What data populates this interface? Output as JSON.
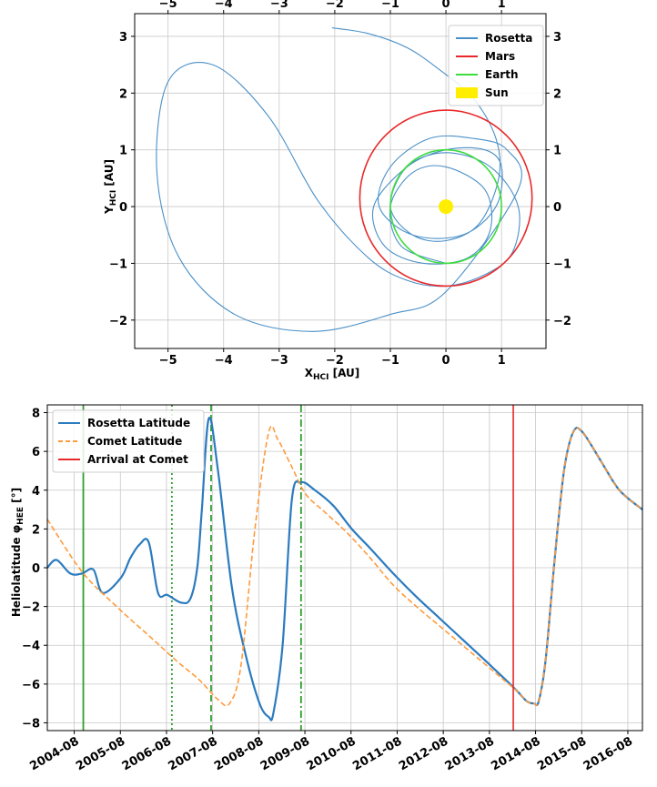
{
  "chart_data": [
    {
      "type": "line",
      "xlabel_main": "X",
      "xlabel_sub": "HCI",
      "xlabel_unit": " [AU]",
      "ylabel_main": "Y",
      "ylabel_sub": "HCI",
      "ylabel_unit": " [AU]",
      "xlim": [
        -5.6,
        1.8
      ],
      "ylim": [
        -2.5,
        3.4
      ],
      "xticks": [
        -5,
        -4,
        -3,
        -2,
        -1,
        0,
        1
      ],
      "yticks": [
        -2,
        -1,
        0,
        1,
        2,
        3
      ],
      "grid": true,
      "legend_position": "top-right",
      "series": [
        {
          "name": "Rosetta",
          "color": "#4a90c8",
          "x": [
            -2.05,
            -1.4,
            -0.7,
            -0.1,
            0.5,
            0.9,
            0.95,
            0.6,
            0.0,
            -0.6,
            -1.0,
            -0.7,
            0.0,
            0.8,
            1.3,
            1.2,
            0.7,
            0.0,
            -0.7,
            -1.4,
            -2.3,
            -3.2,
            -4.2,
            -5.0,
            -5.2,
            -4.8,
            -3.8,
            -2.4,
            -1.0,
            0.0,
            1.3,
            1.1,
            0.5,
            -0.3,
            -1.0,
            -1.2,
            -0.6,
            0.3,
            0.9,
            1.0,
            0.7,
            0.0,
            -0.7,
            -1.3,
            -1.1,
            -0.4,
            0.4,
            0.8,
            0.7,
            0.0,
            -0.6,
            -1.0,
            -0.8,
            0.0
          ],
          "y": [
            3.15,
            3.05,
            2.8,
            2.4,
            1.9,
            1.2,
            0.5,
            -0.3,
            -0.6,
            -0.5,
            0.0,
            0.7,
            0.95,
            0.7,
            0.0,
            -0.8,
            -1.2,
            -1.4,
            -1.3,
            -0.9,
            0.1,
            1.6,
            2.5,
            2.2,
            0.6,
            -0.9,
            -1.9,
            -2.2,
            -1.9,
            -1.5,
            0.3,
            1.0,
            1.2,
            1.2,
            0.7,
            0.0,
            -0.5,
            -0.5,
            0.0,
            0.7,
            1.0,
            1.0,
            0.7,
            0.0,
            -0.7,
            -1.0,
            -0.9,
            -0.4,
            0.3,
            0.7,
            0.6,
            0.0,
            -0.7,
            -1.0
          ]
        },
        {
          "name": "Mars",
          "color": "#e8282a",
          "cx": 0.0,
          "cy": 0.15,
          "r": 1.55
        },
        {
          "name": "Earth",
          "color": "#3ddc3d",
          "cx": 0.0,
          "cy": 0.0,
          "r": 1.0
        },
        {
          "name": "Sun",
          "color": "#ffee00",
          "x": 0.0,
          "y": 0.0
        }
      ]
    },
    {
      "type": "line",
      "ylabel_main": "Heliolatitude φ",
      "ylabel_sub": "HEE",
      "ylabel_unit": " [°]",
      "xlim": [
        2004.0,
        2016.9
      ],
      "ylim": [
        -8.4,
        8.4
      ],
      "xticks": [
        "2004-08",
        "2005-08",
        "2006-08",
        "2007-08",
        "2008-08",
        "2009-08",
        "2010-08",
        "2011-08",
        "2012-08",
        "2013-08",
        "2014-08",
        "2015-08",
        "2016-08"
      ],
      "yticks": [
        -8,
        -6,
        -4,
        -2,
        0,
        2,
        4,
        6,
        8
      ],
      "grid": true,
      "legend_position": "top-left",
      "series": [
        {
          "name": "Rosetta Latitude",
          "color": "#2b7bbf",
          "x": [
            2004.0,
            2004.2,
            2004.5,
            2004.75,
            2005.0,
            2005.2,
            2005.6,
            2005.8,
            2006.0,
            2006.2,
            2006.4,
            2006.6,
            2006.9,
            2007.1,
            2007.25,
            2007.35,
            2007.5,
            2007.7,
            2008.0,
            2008.3,
            2008.6,
            2008.8,
            2008.9,
            2009.1,
            2009.3,
            2009.5,
            2009.8,
            2010.2,
            2010.6,
            2011.0,
            2011.5,
            2012.0,
            2012.5,
            2013.0,
            2013.5,
            2013.9,
            2014.2,
            2014.4,
            2014.55,
            2014.65,
            2014.8,
            2015.0,
            2015.2,
            2015.4,
            2015.6,
            2016.0,
            2016.4,
            2016.9
          ],
          "y": [
            0.0,
            0.4,
            -0.3,
            -0.3,
            -0.1,
            -1.3,
            -0.5,
            0.5,
            1.2,
            1.3,
            -1.3,
            -1.4,
            -1.8,
            -1.6,
            0.0,
            3.0,
            7.7,
            5.0,
            -1.0,
            -4.5,
            -7.0,
            -7.7,
            -7.5,
            -4.0,
            3.5,
            4.4,
            4.0,
            3.2,
            2.0,
            1.0,
            -0.3,
            -1.5,
            -2.6,
            -3.7,
            -4.8,
            -5.7,
            -6.4,
            -6.9,
            -7.0,
            -6.9,
            -4.8,
            0.5,
            5.0,
            7.0,
            7.0,
            5.5,
            4.0,
            3.0
          ]
        },
        {
          "name": "Comet Latitude",
          "color": "#ff9a3c",
          "x": [
            2004.0,
            2004.75,
            2005.5,
            2006.2,
            2006.8,
            2007.3,
            2007.7,
            2007.95,
            2008.2,
            2008.5,
            2008.8,
            2009.0,
            2009.3,
            2009.6,
            2010.0,
            2010.5,
            2011.0,
            2011.5,
            2012.0,
            2012.5,
            2013.0,
            2013.5,
            2013.9,
            2014.2,
            2014.4,
            2014.55,
            2014.65,
            2014.8,
            2015.0,
            2015.2,
            2015.4,
            2015.6,
            2016.0,
            2016.4,
            2016.9
          ],
          "y": [
            2.5,
            -0.2,
            -2.0,
            -3.5,
            -4.8,
            -5.8,
            -6.8,
            -7.0,
            -5.0,
            2.0,
            7.0,
            6.6,
            5.2,
            3.8,
            2.9,
            1.8,
            0.5,
            -0.9,
            -2.0,
            -3.0,
            -4.0,
            -5.0,
            -5.8,
            -6.4,
            -6.9,
            -7.0,
            -6.9,
            -4.8,
            0.5,
            5.0,
            7.0,
            7.0,
            5.5,
            4.0,
            3.0
          ]
        },
        {
          "name": "Arrival at Comet",
          "color": "#e8282a",
          "x": 2014.1
        }
      ],
      "vertical_lines": [
        {
          "x": 2004.78,
          "style": "solid",
          "color": "#2ca02c"
        },
        {
          "x": 2006.7,
          "style": "dotted",
          "color": "#2ca02c"
        },
        {
          "x": 2007.55,
          "style": "dashed",
          "color": "#2ca02c"
        },
        {
          "x": 2009.5,
          "style": "dashdot",
          "color": "#2ca02c"
        }
      ]
    }
  ]
}
